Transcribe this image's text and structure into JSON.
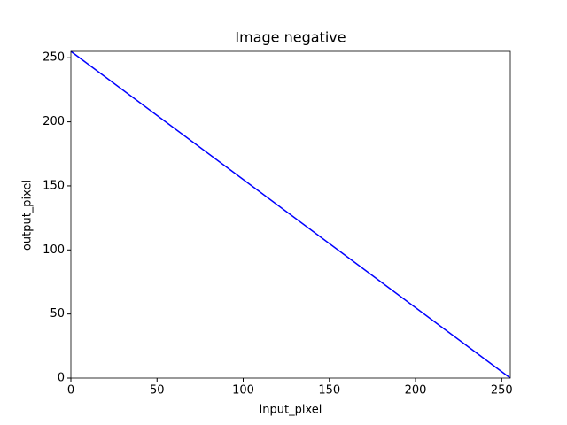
{
  "chart_data": {
    "type": "line",
    "title": "Image negative",
    "x_label": "input_pixel",
    "y_label": "output_pixel",
    "x": [
      0,
      255
    ],
    "series": [
      {
        "color": "#0000ff",
        "values": [
          255,
          0
        ]
      }
    ],
    "xlim": [
      0,
      255
    ],
    "ylim": [
      0,
      255
    ],
    "xticks": [
      0,
      50,
      100,
      150,
      200,
      250
    ],
    "yticks": [
      0,
      50,
      100,
      150,
      200,
      250
    ],
    "grid": false
  }
}
